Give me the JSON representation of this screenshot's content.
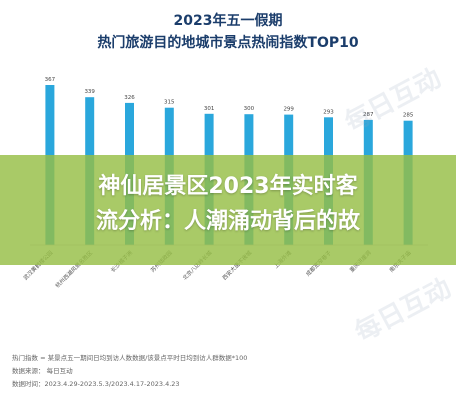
{
  "chart_data": {
    "type": "bar",
    "title": "2023年五一假期",
    "subtitle": "热门旅游目的地城市景点热闹指数TOP10",
    "categories": [
      "武汉黄鹤楼公园",
      "杭州西湖风景名胜区",
      "长沙橘子洲",
      "苏州拙政园",
      "北京八达岭长城",
      "西安大唐不夜城",
      "上海外滩",
      "成都宽窄巷子",
      "重庆洪崖洞",
      "南京夫子庙"
    ],
    "values": [
      367,
      339,
      326,
      315,
      301,
      300,
      299,
      293,
      287,
      285
    ],
    "value_labels": [
      "367",
      "339",
      "326",
      "315",
      "301",
      "300",
      "299",
      "293",
      "287",
      "285"
    ],
    "ylim": [
      0,
      400
    ],
    "grid": false,
    "legend": "none",
    "bar_color": "#2aa7dc"
  },
  "overlay": {
    "line1": "神仙居景区2023年实时客",
    "line2": "流分析：人潮涌动背后的故",
    "color": "#9cc048"
  },
  "notes": [
    "热门指数 = 某景点五一期间日均到访人数数据/该景点平时日均到访人群数据*100",
    "数据来源：    每日互动",
    "数据时间：2023.4.29-2023.5.3/2023.4.17-2023.4.23"
  ],
  "watermark": "每日互动"
}
